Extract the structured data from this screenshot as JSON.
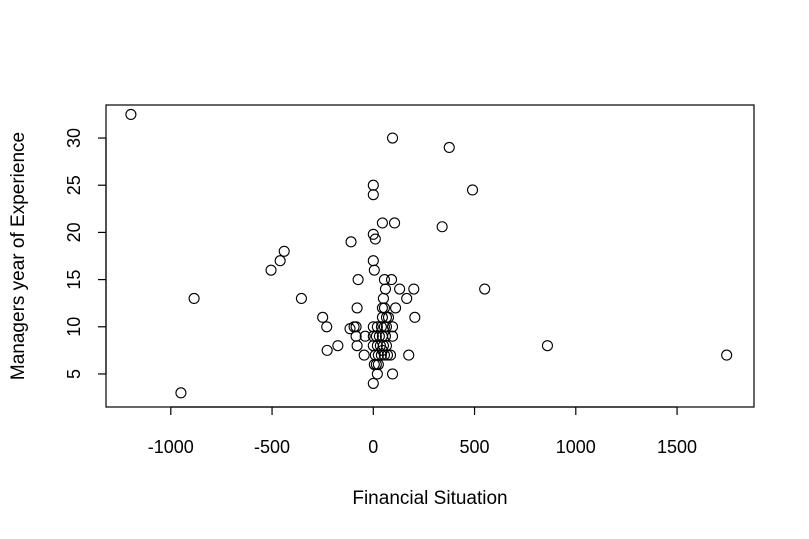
{
  "chart_data": {
    "type": "scatter",
    "title": "",
    "xlabel": "Financial Situation",
    "ylabel": "Managers year of Experience",
    "xlim": [
      -1320,
      1880
    ],
    "ylim": [
      1.5,
      33.5
    ],
    "xticks": [
      -1000,
      -500,
      0,
      500,
      1000,
      1500
    ],
    "xtick_labels": [
      "-1000",
      "-500",
      "0",
      "500",
      "1000",
      "1500"
    ],
    "yticks": [
      5,
      10,
      15,
      20,
      25,
      30
    ],
    "ytick_labels": [
      "5",
      "10",
      "15",
      "20",
      "25",
      "30"
    ],
    "grid": false,
    "legend": "none",
    "marker": "open-circle",
    "points": [
      {
        "x": -1197,
        "y": 32.5
      },
      {
        "x": -950,
        "y": 3
      },
      {
        "x": -885,
        "y": 13
      },
      {
        "x": -505,
        "y": 16
      },
      {
        "x": -460,
        "y": 17
      },
      {
        "x": -440,
        "y": 18
      },
      {
        "x": -355,
        "y": 13
      },
      {
        "x": -250,
        "y": 11
      },
      {
        "x": -230,
        "y": 10
      },
      {
        "x": -228,
        "y": 7.5
      },
      {
        "x": -175,
        "y": 8
      },
      {
        "x": -110,
        "y": 19
      },
      {
        "x": -115,
        "y": 9.8
      },
      {
        "x": -95,
        "y": 10
      },
      {
        "x": -85,
        "y": 10
      },
      {
        "x": -80,
        "y": 12
      },
      {
        "x": -75,
        "y": 15
      },
      {
        "x": -85,
        "y": 9
      },
      {
        "x": -80,
        "y": 8
      },
      {
        "x": -40,
        "y": 9
      },
      {
        "x": -45,
        "y": 7
      },
      {
        "x": 0,
        "y": 25
      },
      {
        "x": 0,
        "y": 24
      },
      {
        "x": 0,
        "y": 19.8
      },
      {
        "x": 10,
        "y": 19.3
      },
      {
        "x": 0,
        "y": 17
      },
      {
        "x": 5,
        "y": 16
      },
      {
        "x": 45,
        "y": 21
      },
      {
        "x": 105,
        "y": 21
      },
      {
        "x": 95,
        "y": 30
      },
      {
        "x": 375,
        "y": 29
      },
      {
        "x": 490,
        "y": 24.5
      },
      {
        "x": 340,
        "y": 20.6
      },
      {
        "x": 550,
        "y": 14
      },
      {
        "x": 860,
        "y": 8
      },
      {
        "x": 1745,
        "y": 7
      },
      {
        "x": 175,
        "y": 7
      },
      {
        "x": 200,
        "y": 14
      },
      {
        "x": 205,
        "y": 11
      },
      {
        "x": 165,
        "y": 13
      },
      {
        "x": 130,
        "y": 14
      },
      {
        "x": 110,
        "y": 12
      },
      {
        "x": 90,
        "y": 15
      },
      {
        "x": 55,
        "y": 15
      },
      {
        "x": 60,
        "y": 14
      },
      {
        "x": 50,
        "y": 13
      },
      {
        "x": 45,
        "y": 12
      },
      {
        "x": 55,
        "y": 12
      },
      {
        "x": 45,
        "y": 11
      },
      {
        "x": 65,
        "y": 11
      },
      {
        "x": 75,
        "y": 11
      },
      {
        "x": 95,
        "y": 10
      },
      {
        "x": 95,
        "y": 9
      },
      {
        "x": 95,
        "y": 5
      },
      {
        "x": 0,
        "y": 10
      },
      {
        "x": 20,
        "y": 10
      },
      {
        "x": 40,
        "y": 10
      },
      {
        "x": 55,
        "y": 10
      },
      {
        "x": 65,
        "y": 10
      },
      {
        "x": 0,
        "y": 9
      },
      {
        "x": 15,
        "y": 9
      },
      {
        "x": 30,
        "y": 9
      },
      {
        "x": 45,
        "y": 9
      },
      {
        "x": 60,
        "y": 9
      },
      {
        "x": 0,
        "y": 8
      },
      {
        "x": 20,
        "y": 8
      },
      {
        "x": 35,
        "y": 8
      },
      {
        "x": 50,
        "y": 8
      },
      {
        "x": 65,
        "y": 8
      },
      {
        "x": 10,
        "y": 7
      },
      {
        "x": 25,
        "y": 7
      },
      {
        "x": 40,
        "y": 7
      },
      {
        "x": 55,
        "y": 7
      },
      {
        "x": 70,
        "y": 7
      },
      {
        "x": 85,
        "y": 7
      },
      {
        "x": 5,
        "y": 6
      },
      {
        "x": 15,
        "y": 6
      },
      {
        "x": 25,
        "y": 6
      },
      {
        "x": 20,
        "y": 5
      },
      {
        "x": 0,
        "y": 4
      },
      {
        "x": 45,
        "y": 7.5
      }
    ]
  }
}
